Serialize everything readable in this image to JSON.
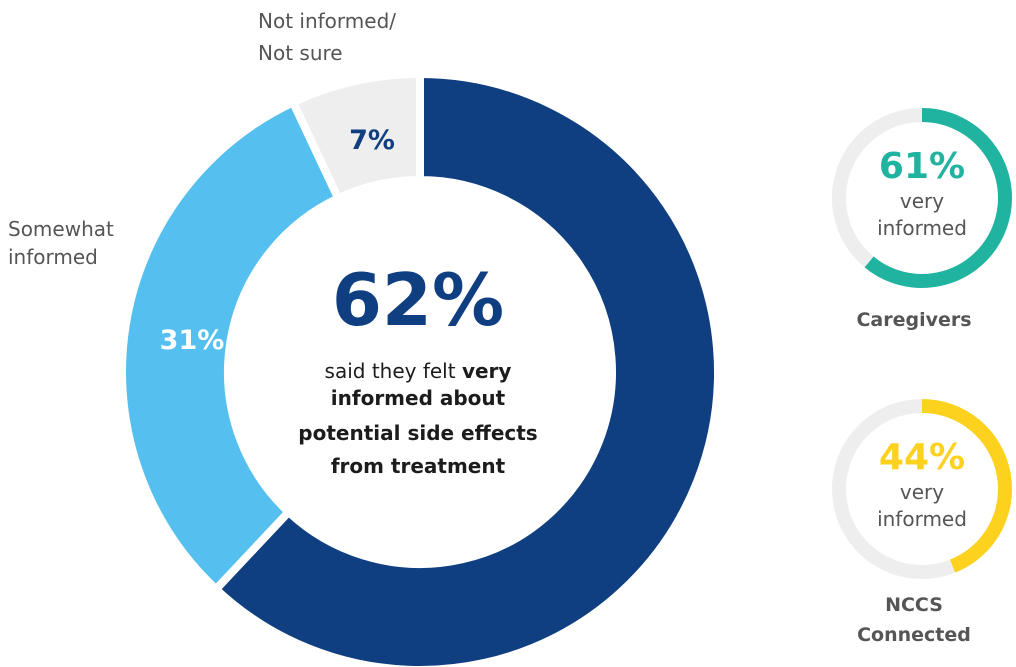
{
  "chart_data": [
    {
      "type": "pie",
      "categories": [
        "Very informed",
        "Somewhat informed",
        "Not informed/ Not sure"
      ],
      "values": [
        62,
        31,
        7
      ],
      "value_labels": [
        "62%",
        "31%",
        "7%"
      ],
      "segment_labels": [
        "Somewhat informed",
        "Not informed/ Not sure"
      ],
      "label_lines": {
        "somewhat": [
          "Somewhat",
          "informed"
        ],
        "not_informed": [
          "Not informed/",
          "Not sure"
        ]
      },
      "center": {
        "value": "62%",
        "line1_plain": "said they felt ",
        "line1_bold": "very",
        "line2": "informed about",
        "line3": "potential side effects",
        "line4": "from treatment"
      },
      "colors": [
        "#0f3f80",
        "#55bfef",
        "#eeeeee"
      ],
      "percent_label_colors": [
        "#0f3f80",
        "#ffffff",
        "#0f3f80"
      ]
    },
    {
      "type": "pie",
      "title": "Caregivers",
      "values": [
        61,
        39
      ],
      "value_label": "61%",
      "caption_lines": [
        "very",
        "informed"
      ],
      "colors": [
        "#1fb3a0",
        "#eeeeee"
      ]
    },
    {
      "type": "pie",
      "title": "NCCS Connected",
      "title_lines": [
        "NCCS",
        "Connected"
      ],
      "values": [
        44,
        56
      ],
      "value_label": "44%",
      "caption_lines": [
        "very",
        "informed"
      ],
      "colors": [
        "#fcd21e",
        "#eeeeee"
      ]
    }
  ]
}
